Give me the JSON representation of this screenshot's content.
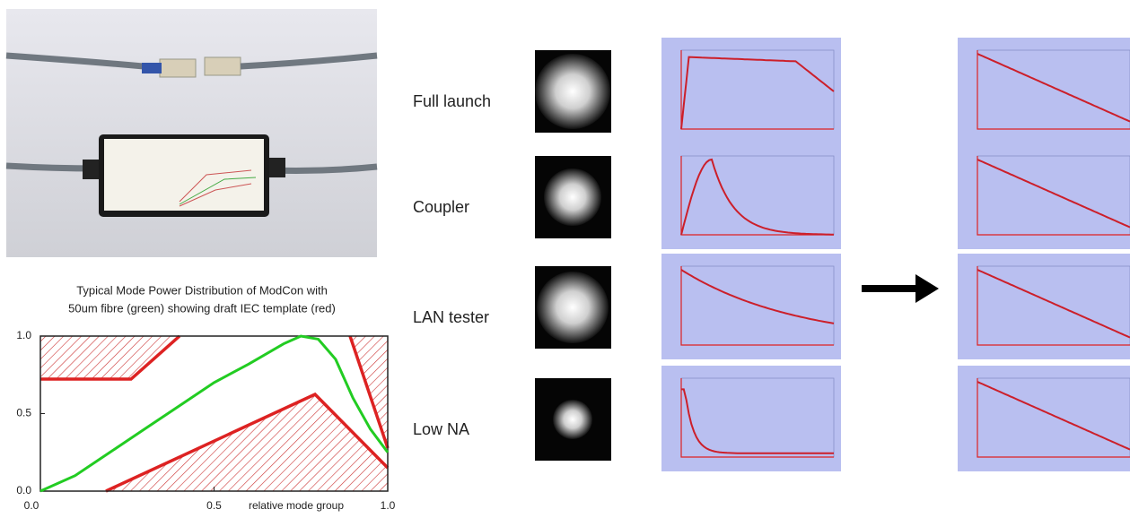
{
  "chart_data": {
    "type": "line",
    "title_lines": [
      "Typical Mode Power  Distribution of ModCon with",
      "50um fibre (green) showing draft IEC template (red)"
    ],
    "x_label": "relative mode group",
    "x": [
      0,
      0.1,
      0.2,
      0.3,
      0.4,
      0.5,
      0.6,
      0.7,
      0.75,
      0.8,
      0.85,
      0.9,
      0.95,
      1.0
    ],
    "series": [
      {
        "color": "#22cc22",
        "values": [
          0,
          0.1,
          0.25,
          0.4,
          0.55,
          0.7,
          0.82,
          0.95,
          1.0,
          0.98,
          0.85,
          0.6,
          0.4,
          0.25
        ]
      }
    ],
    "xlim": [
      0,
      1
    ],
    "ylim": [
      0,
      1
    ],
    "xticks": [
      {
        "value": 0,
        "label": "0.0"
      },
      {
        "value": 0.5,
        "label": "0.5"
      },
      {
        "value": 1,
        "label": "1.0"
      }
    ],
    "yticks": [
      {
        "value": 0,
        "label": "0.0"
      },
      {
        "value": 0.5,
        "label": "0.5"
      },
      {
        "value": 1,
        "label": "1.0"
      }
    ]
  },
  "rows": [
    {
      "label": "Full launch"
    },
    {
      "label": "Coupler"
    },
    {
      "label": "LAN tester"
    },
    {
      "label": "Low NA"
    }
  ]
}
